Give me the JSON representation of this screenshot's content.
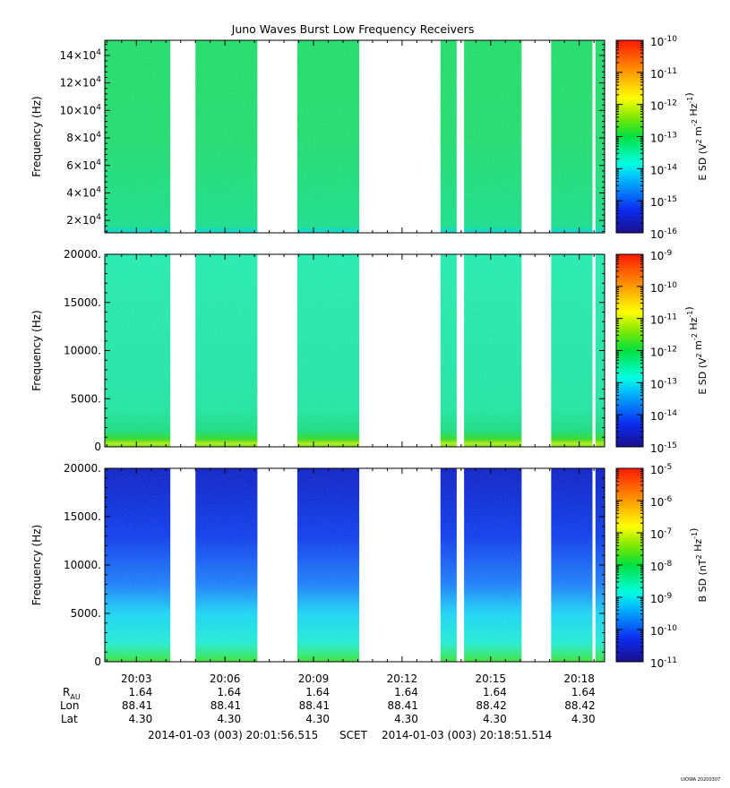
{
  "title": "Juno Waves Burst Low Frequency Receivers",
  "time_axis": {
    "ticks": [
      "20:03",
      "20:06",
      "20:09",
      "20:12",
      "20:15",
      "20:18"
    ],
    "tick_minutes": [
      183,
      186,
      189,
      192,
      195,
      198
    ],
    "start_minutes": 181.93,
    "end_minutes": 198.86
  },
  "ephemeris": {
    "labels": [
      "R",
      "Lon",
      "Lat"
    ],
    "r_subscript": "AU",
    "columns": [
      {
        "r": "1.64",
        "lon": "88.41",
        "lat": "4.30"
      },
      {
        "r": "1.64",
        "lon": "88.41",
        "lat": "4.30"
      },
      {
        "r": "1.64",
        "lon": "88.41",
        "lat": "4.30"
      },
      {
        "r": "1.64",
        "lon": "88.41",
        "lat": "4.30"
      },
      {
        "r": "1.64",
        "lon": "88.42",
        "lat": "4.30"
      },
      {
        "r": "1.64",
        "lon": "88.42",
        "lat": "4.30"
      }
    ]
  },
  "time_range": {
    "start": "2014-01-03 (003) 20:01:56.515",
    "label": "SCET",
    "end": "2014-01-03 (003) 20:18:51.514"
  },
  "credit": "UIOWA 20200307",
  "chart_data": [
    {
      "type": "heatmap",
      "panel": "top",
      "ylabel": "Frequency (Hz)",
      "y_ticks": [
        "2×10^4",
        "4×10^4",
        "6×10^4",
        "8×10^4",
        "10×10^4",
        "12×10^4",
        "14×10^4"
      ],
      "y_tick_values": [
        20000,
        40000,
        60000,
        80000,
        100000,
        120000,
        140000
      ],
      "ylim": [
        11000,
        151000
      ],
      "colorbar_label": "E SD (V^2 m^-2 Hz^-1)",
      "colorbar_ticks": [
        "10^-16",
        "10^-15",
        "10^-14",
        "10^-13",
        "10^-12",
        "10^-11",
        "10^-10"
      ],
      "data_gaps_minutes": [
        [
          184.15,
          185.0
        ],
        [
          187.1,
          188.45
        ],
        [
          190.55,
          193.3
        ],
        [
          193.85,
          194.1
        ],
        [
          196.05,
          197.05
        ],
        [
          198.45,
          198.55
        ]
      ],
      "level_log10": -13.4
    },
    {
      "type": "heatmap",
      "panel": "middle",
      "ylabel": "Frequency (Hz)",
      "y_ticks": [
        "0",
        "5000.",
        "10000.",
        "15000.",
        "20000."
      ],
      "y_tick_values": [
        0,
        5000,
        10000,
        15000,
        20000
      ],
      "ylim": [
        0,
        20000
      ],
      "colorbar_label": "E SD (V^2 m^-2 Hz^-1)",
      "colorbar_ticks": [
        "10^-15",
        "10^-14",
        "10^-13",
        "10^-12",
        "10^-11",
        "10^-10",
        "10^-9"
      ],
      "data_gaps_minutes": [
        [
          184.15,
          185.0
        ],
        [
          187.1,
          188.45
        ],
        [
          190.55,
          193.3
        ],
        [
          193.85,
          194.1
        ],
        [
          196.05,
          197.05
        ],
        [
          198.45,
          198.55
        ]
      ],
      "level_log10": -12.9,
      "low_frequency_enhancement_log10": -11.8
    },
    {
      "type": "heatmap",
      "panel": "bottom",
      "ylabel": "Frequency (Hz)",
      "y_ticks": [
        "0",
        "5000.",
        "10000.",
        "15000.",
        "20000."
      ],
      "y_tick_values": [
        0,
        5000,
        10000,
        15000,
        20000
      ],
      "ylim": [
        0,
        20000
      ],
      "colorbar_label": "B SD (nT^2 Hz^-1)",
      "colorbar_ticks": [
        "10^-11",
        "10^-10",
        "10^-9",
        "10^-8",
        "10^-7",
        "10^-6",
        "10^-5"
      ],
      "data_gaps_minutes": [
        [
          184.15,
          185.0
        ],
        [
          187.1,
          188.45
        ],
        [
          190.55,
          193.3
        ],
        [
          193.85,
          194.1
        ],
        [
          196.05,
          197.05
        ],
        [
          198.45,
          198.55
        ]
      ],
      "level_log10_high_freq": -10.2,
      "level_log10_low_freq": -8.3
    }
  ]
}
